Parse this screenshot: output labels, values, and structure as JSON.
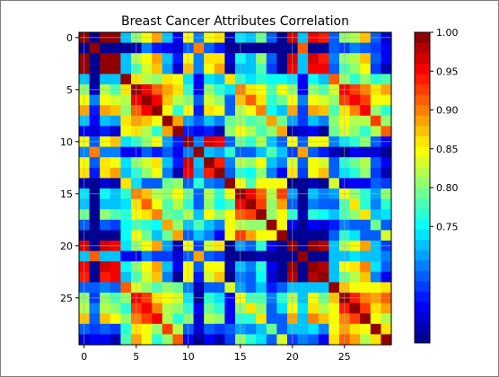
{
  "chart_data": {
    "type": "heatmap",
    "title": "Breast Cancer Attributes Correlation",
    "xlabel": "",
    "ylabel": "",
    "rows": 30,
    "cols": 30,
    "x_ticks": [
      0,
      5,
      10,
      15,
      20,
      25
    ],
    "y_ticks": [
      0,
      5,
      10,
      15,
      20,
      25
    ],
    "x_tick_labels": [
      "0",
      "5",
      "10",
      "15",
      "20",
      "25"
    ],
    "y_tick_labels": [
      "0",
      "5",
      "10",
      "15",
      "20",
      "25"
    ],
    "colormap": "jet",
    "colorbar": {
      "min": 0.6,
      "max": 1.0,
      "ticks": [
        0.75,
        0.8,
        0.85,
        0.9,
        0.95,
        1.0
      ],
      "tick_labels": [
        "0.75",
        "0.80",
        "0.85",
        "0.90",
        "0.95",
        "1.00"
      ],
      "levels": 30
    },
    "grid": true,
    "matrix": [
      [
        1.0,
        0.52,
        1.0,
        0.99,
        0.72,
        0.8,
        0.84,
        0.88,
        0.72,
        0.64,
        0.85,
        0.7,
        0.84,
        0.86,
        0.62,
        0.74,
        0.72,
        0.79,
        0.68,
        0.6,
        0.97,
        0.72,
        0.96,
        0.94,
        0.68,
        0.8,
        0.82,
        0.87,
        0.68,
        0.63
      ],
      [
        0.52,
        1.0,
        0.53,
        0.52,
        0.61,
        0.62,
        0.7,
        0.66,
        0.64,
        0.63,
        0.68,
        0.9,
        0.68,
        0.66,
        0.61,
        0.59,
        0.58,
        0.61,
        0.61,
        0.61,
        0.55,
        0.91,
        0.56,
        0.54,
        0.68,
        0.67,
        0.7,
        0.69,
        0.67,
        0.64
      ],
      [
        1.0,
        0.53,
        1.0,
        0.99,
        0.73,
        0.82,
        0.85,
        0.89,
        0.73,
        0.66,
        0.85,
        0.7,
        0.86,
        0.86,
        0.63,
        0.75,
        0.73,
        0.8,
        0.69,
        0.61,
        0.97,
        0.73,
        0.97,
        0.94,
        0.7,
        0.81,
        0.82,
        0.87,
        0.69,
        0.65
      ],
      [
        0.99,
        0.52,
        0.99,
        1.0,
        0.72,
        0.78,
        0.83,
        0.87,
        0.71,
        0.63,
        0.87,
        0.7,
        0.85,
        0.88,
        0.62,
        0.73,
        0.72,
        0.78,
        0.67,
        0.6,
        0.96,
        0.72,
        0.96,
        0.96,
        0.68,
        0.78,
        0.8,
        0.85,
        0.67,
        0.62
      ],
      [
        0.72,
        0.61,
        0.73,
        0.72,
        1.0,
        0.86,
        0.82,
        0.81,
        0.86,
        0.84,
        0.74,
        0.65,
        0.74,
        0.72,
        0.86,
        0.76,
        0.74,
        0.77,
        0.75,
        0.75,
        0.74,
        0.64,
        0.75,
        0.73,
        0.91,
        0.8,
        0.77,
        0.8,
        0.77,
        0.78
      ],
      [
        0.8,
        0.62,
        0.82,
        0.78,
        0.86,
        1.0,
        0.95,
        0.91,
        0.89,
        0.86,
        0.77,
        0.64,
        0.8,
        0.76,
        0.74,
        0.9,
        0.86,
        0.84,
        0.78,
        0.84,
        0.8,
        0.65,
        0.81,
        0.78,
        0.83,
        0.96,
        0.92,
        0.9,
        0.86,
        0.88
      ],
      [
        0.84,
        0.7,
        0.85,
        0.83,
        0.82,
        0.95,
        1.0,
        0.96,
        0.87,
        0.82,
        0.81,
        0.68,
        0.83,
        0.81,
        0.69,
        0.87,
        0.91,
        0.86,
        0.77,
        0.79,
        0.84,
        0.7,
        0.85,
        0.83,
        0.8,
        0.92,
        0.96,
        0.92,
        0.84,
        0.84
      ],
      [
        0.88,
        0.66,
        0.89,
        0.87,
        0.81,
        0.91,
        0.96,
        1.0,
        0.85,
        0.77,
        0.85,
        0.66,
        0.86,
        0.85,
        0.68,
        0.82,
        0.84,
        0.9,
        0.75,
        0.72,
        0.88,
        0.67,
        0.89,
        0.87,
        0.78,
        0.86,
        0.9,
        0.96,
        0.8,
        0.76
      ],
      [
        0.72,
        0.64,
        0.73,
        0.71,
        0.86,
        0.89,
        0.87,
        0.85,
        1.0,
        0.88,
        0.71,
        0.68,
        0.73,
        0.7,
        0.79,
        0.8,
        0.78,
        0.79,
        0.89,
        0.79,
        0.71,
        0.67,
        0.73,
        0.7,
        0.81,
        0.85,
        0.82,
        0.82,
        0.93,
        0.81
      ],
      [
        0.64,
        0.63,
        0.66,
        0.63,
        0.84,
        0.86,
        0.82,
        0.77,
        0.88,
        1.0,
        0.66,
        0.64,
        0.66,
        0.62,
        0.8,
        0.84,
        0.82,
        0.78,
        0.8,
        0.89,
        0.62,
        0.63,
        0.64,
        0.6,
        0.79,
        0.83,
        0.81,
        0.77,
        0.82,
        0.91
      ],
      [
        0.85,
        0.68,
        0.85,
        0.87,
        0.74,
        0.77,
        0.81,
        0.85,
        0.71,
        0.66,
        1.0,
        0.7,
        0.97,
        0.95,
        0.69,
        0.79,
        0.76,
        0.82,
        0.72,
        0.68,
        0.84,
        0.68,
        0.84,
        0.85,
        0.7,
        0.74,
        0.76,
        0.8,
        0.68,
        0.64
      ],
      [
        0.7,
        0.9,
        0.7,
        0.7,
        0.65,
        0.64,
        0.68,
        0.66,
        0.68,
        0.64,
        0.7,
        1.0,
        0.72,
        0.71,
        0.76,
        0.68,
        0.69,
        0.72,
        0.78,
        0.72,
        0.67,
        0.89,
        0.68,
        0.66,
        0.62,
        0.61,
        0.64,
        0.63,
        0.63,
        0.6
      ],
      [
        0.84,
        0.68,
        0.86,
        0.85,
        0.74,
        0.8,
        0.83,
        0.86,
        0.73,
        0.66,
        0.97,
        0.72,
        1.0,
        0.94,
        0.7,
        0.82,
        0.8,
        0.84,
        0.73,
        0.7,
        0.83,
        0.68,
        0.84,
        0.83,
        0.69,
        0.76,
        0.79,
        0.82,
        0.68,
        0.64
      ],
      [
        0.86,
        0.66,
        0.86,
        0.88,
        0.72,
        0.76,
        0.81,
        0.85,
        0.7,
        0.62,
        0.95,
        0.71,
        0.94,
        1.0,
        0.68,
        0.76,
        0.75,
        0.81,
        0.7,
        0.64,
        0.86,
        0.67,
        0.85,
        0.87,
        0.69,
        0.74,
        0.76,
        0.8,
        0.67,
        0.62
      ],
      [
        0.62,
        0.61,
        0.63,
        0.62,
        0.86,
        0.74,
        0.69,
        0.68,
        0.79,
        0.8,
        0.69,
        0.76,
        0.7,
        0.68,
        1.0,
        0.84,
        0.78,
        0.84,
        0.85,
        0.84,
        0.6,
        0.6,
        0.62,
        0.61,
        0.83,
        0.65,
        0.64,
        0.65,
        0.68,
        0.67
      ],
      [
        0.74,
        0.59,
        0.75,
        0.73,
        0.76,
        0.9,
        0.87,
        0.82,
        0.8,
        0.84,
        0.79,
        0.68,
        0.82,
        0.76,
        0.84,
        1.0,
        0.95,
        0.91,
        0.82,
        0.92,
        0.71,
        0.6,
        0.72,
        0.7,
        0.71,
        0.85,
        0.8,
        0.77,
        0.71,
        0.8
      ],
      [
        0.72,
        0.58,
        0.73,
        0.72,
        0.74,
        0.86,
        0.91,
        0.84,
        0.78,
        0.82,
        0.76,
        0.69,
        0.8,
        0.75,
        0.78,
        0.95,
        1.0,
        0.92,
        0.8,
        0.88,
        0.69,
        0.6,
        0.7,
        0.68,
        0.69,
        0.78,
        0.86,
        0.76,
        0.7,
        0.76
      ],
      [
        0.79,
        0.61,
        0.8,
        0.78,
        0.77,
        0.84,
        0.86,
        0.9,
        0.79,
        0.78,
        0.82,
        0.72,
        0.84,
        0.81,
        0.84,
        0.91,
        0.92,
        1.0,
        0.81,
        0.84,
        0.76,
        0.62,
        0.77,
        0.75,
        0.72,
        0.78,
        0.8,
        0.86,
        0.72,
        0.74
      ],
      [
        0.68,
        0.61,
        0.69,
        0.67,
        0.75,
        0.78,
        0.77,
        0.75,
        0.89,
        0.8,
        0.72,
        0.78,
        0.73,
        0.7,
        0.85,
        0.82,
        0.8,
        0.81,
        1.0,
        0.84,
        0.64,
        0.59,
        0.65,
        0.63,
        0.66,
        0.7,
        0.68,
        0.68,
        0.79,
        0.68
      ],
      [
        0.6,
        0.61,
        0.61,
        0.6,
        0.75,
        0.84,
        0.79,
        0.72,
        0.79,
        0.89,
        0.68,
        0.72,
        0.7,
        0.64,
        0.84,
        0.92,
        0.88,
        0.84,
        0.84,
        1.0,
        0.58,
        0.58,
        0.59,
        0.57,
        0.68,
        0.76,
        0.74,
        0.68,
        0.69,
        0.83
      ],
      [
        0.97,
        0.55,
        0.97,
        0.96,
        0.74,
        0.8,
        0.84,
        0.88,
        0.71,
        0.62,
        0.84,
        0.67,
        0.83,
        0.86,
        0.6,
        0.71,
        0.69,
        0.76,
        0.64,
        0.58,
        1.0,
        0.57,
        0.99,
        0.98,
        0.72,
        0.82,
        0.84,
        0.89,
        0.72,
        0.67
      ],
      [
        0.72,
        0.91,
        0.73,
        0.72,
        0.64,
        0.65,
        0.7,
        0.67,
        0.67,
        0.63,
        0.68,
        0.89,
        0.68,
        0.67,
        0.6,
        0.6,
        0.6,
        0.62,
        0.59,
        0.58,
        0.57,
        1.0,
        0.58,
        0.56,
        0.72,
        0.73,
        0.74,
        0.72,
        0.72,
        0.7
      ],
      [
        0.96,
        0.56,
        0.97,
        0.96,
        0.75,
        0.81,
        0.85,
        0.89,
        0.73,
        0.64,
        0.84,
        0.68,
        0.84,
        0.85,
        0.62,
        0.72,
        0.7,
        0.77,
        0.65,
        0.59,
        0.99,
        0.58,
        1.0,
        0.98,
        0.73,
        0.84,
        0.86,
        0.9,
        0.74,
        0.69
      ],
      [
        0.94,
        0.54,
        0.94,
        0.96,
        0.73,
        0.78,
        0.83,
        0.87,
        0.7,
        0.6,
        0.85,
        0.66,
        0.83,
        0.87,
        0.61,
        0.7,
        0.68,
        0.75,
        0.63,
        0.57,
        0.98,
        0.56,
        0.98,
        1.0,
        0.72,
        0.79,
        0.82,
        0.87,
        0.7,
        0.65
      ],
      [
        0.68,
        0.68,
        0.7,
        0.68,
        0.91,
        0.83,
        0.8,
        0.78,
        0.81,
        0.79,
        0.7,
        0.62,
        0.69,
        0.69,
        0.83,
        0.71,
        0.69,
        0.72,
        0.66,
        0.68,
        0.72,
        0.72,
        0.73,
        0.72,
        1.0,
        0.87,
        0.84,
        0.85,
        0.84,
        0.86
      ],
      [
        0.8,
        0.67,
        0.81,
        0.78,
        0.8,
        0.96,
        0.92,
        0.86,
        0.85,
        0.83,
        0.74,
        0.61,
        0.76,
        0.74,
        0.65,
        0.85,
        0.78,
        0.78,
        0.7,
        0.76,
        0.82,
        0.73,
        0.84,
        0.79,
        0.87,
        1.0,
        0.94,
        0.9,
        0.89,
        0.91
      ],
      [
        0.82,
        0.7,
        0.82,
        0.8,
        0.77,
        0.92,
        0.96,
        0.9,
        0.82,
        0.81,
        0.76,
        0.64,
        0.79,
        0.76,
        0.64,
        0.8,
        0.86,
        0.8,
        0.68,
        0.74,
        0.84,
        0.74,
        0.86,
        0.82,
        0.84,
        0.94,
        1.0,
        0.93,
        0.86,
        0.88
      ],
      [
        0.87,
        0.69,
        0.87,
        0.85,
        0.8,
        0.9,
        0.92,
        0.96,
        0.82,
        0.77,
        0.8,
        0.63,
        0.82,
        0.8,
        0.65,
        0.77,
        0.76,
        0.86,
        0.68,
        0.68,
        0.89,
        0.72,
        0.9,
        0.87,
        0.85,
        0.9,
        0.93,
        1.0,
        0.85,
        0.82
      ],
      [
        0.68,
        0.67,
        0.69,
        0.67,
        0.77,
        0.86,
        0.84,
        0.8,
        0.93,
        0.82,
        0.68,
        0.63,
        0.68,
        0.67,
        0.68,
        0.71,
        0.7,
        0.72,
        0.79,
        0.69,
        0.72,
        0.72,
        0.74,
        0.7,
        0.84,
        0.89,
        0.86,
        0.85,
        1.0,
        0.86
      ],
      [
        0.63,
        0.64,
        0.65,
        0.62,
        0.78,
        0.88,
        0.84,
        0.76,
        0.81,
        0.91,
        0.64,
        0.6,
        0.64,
        0.62,
        0.67,
        0.8,
        0.76,
        0.74,
        0.68,
        0.83,
        0.67,
        0.7,
        0.69,
        0.65,
        0.86,
        0.91,
        0.88,
        0.82,
        0.86,
        1.0
      ]
    ]
  }
}
